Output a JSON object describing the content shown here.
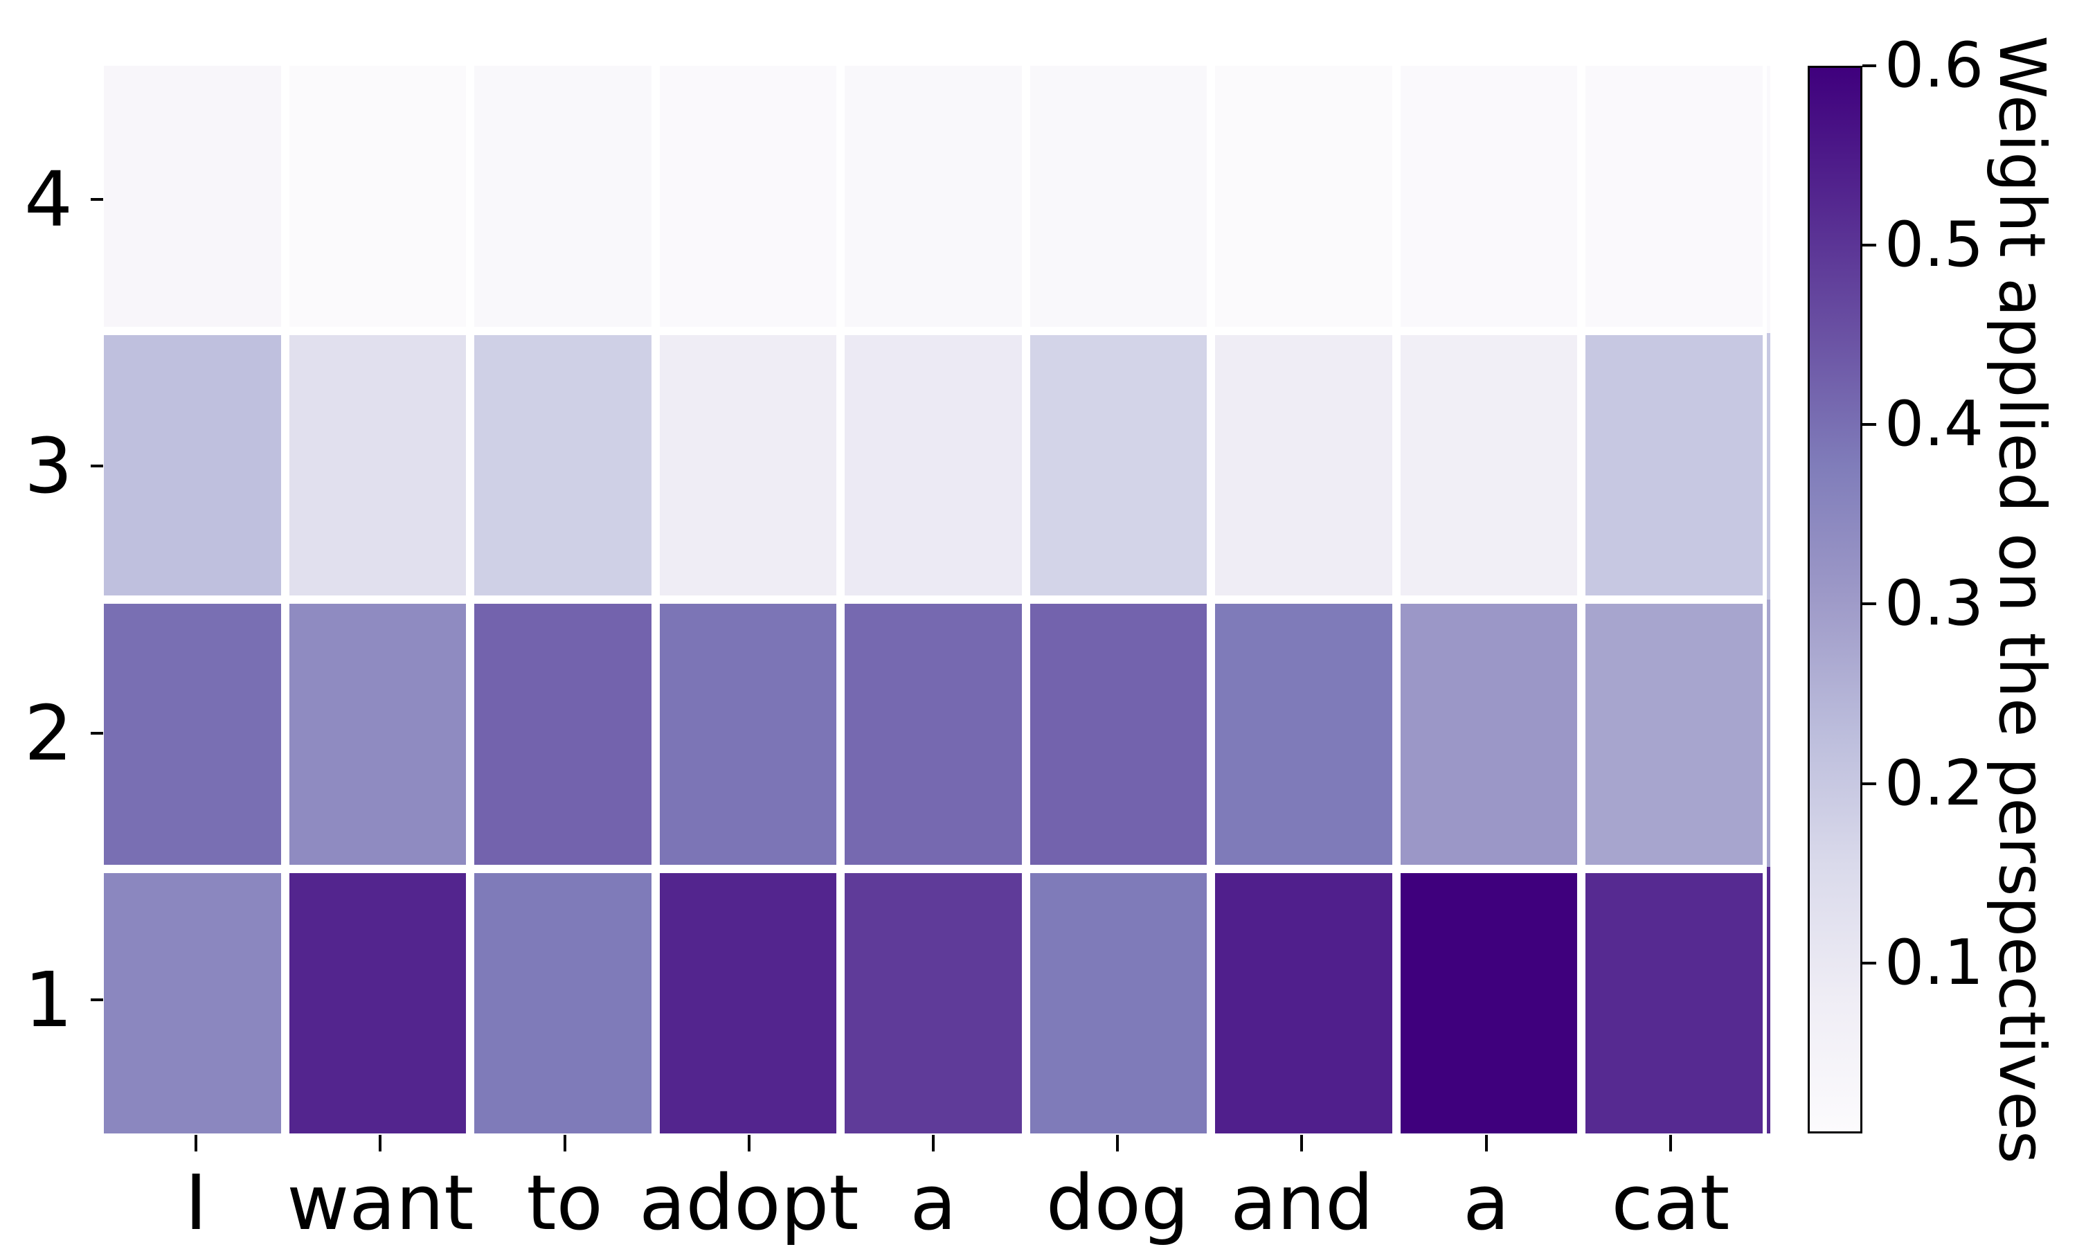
{
  "figure": {
    "background": "#ffffff",
    "text_color": "#000000"
  },
  "chart_data": {
    "type": "heatmap",
    "title": "",
    "xlabel": "",
    "ylabel": "",
    "x_labels": [
      "I",
      "want",
      "to",
      "adopt",
      "a",
      "dog",
      "and",
      "a",
      "cat"
    ],
    "y_labels_top_down": [
      "4",
      "3",
      "2",
      "1"
    ],
    "matrix_rows_top_down": [
      [
        0.03,
        0.01,
        0.02,
        0.015,
        0.02,
        0.02,
        0.01,
        0.015,
        0.015
      ],
      [
        0.22,
        0.13,
        0.18,
        0.08,
        0.09,
        0.17,
        0.08,
        0.07,
        0.2
      ],
      [
        0.4,
        0.34,
        0.42,
        0.39,
        0.41,
        0.42,
        0.38,
        0.31,
        0.28
      ],
      [
        0.35,
        0.53,
        0.38,
        0.53,
        0.49,
        0.38,
        0.54,
        0.6,
        0.52
      ]
    ],
    "colormap": "Purples",
    "vmin": 0.005,
    "vmax": 0.6,
    "grid_gap_color": "#ffffff",
    "colorbar": {
      "label": "Weight applied on the perspectives",
      "ticks": [
        "0.6",
        "0.5",
        "0.4",
        "0.3",
        "0.2",
        "0.1"
      ],
      "tick_values": [
        0.6,
        0.5,
        0.4,
        0.3,
        0.2,
        0.1
      ],
      "top_color": "#3f007d",
      "bottom_color": "#fcfbfd"
    },
    "legend_position": "right-colorbar",
    "grid": false
  }
}
